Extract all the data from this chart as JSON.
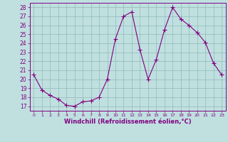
{
  "x": [
    0,
    1,
    2,
    3,
    4,
    5,
    6,
    7,
    8,
    9,
    10,
    11,
    12,
    13,
    14,
    15,
    16,
    17,
    18,
    19,
    20,
    21,
    22,
    23
  ],
  "y": [
    20.5,
    18.8,
    18.2,
    17.8,
    17.1,
    17.0,
    17.5,
    17.6,
    18.0,
    20.0,
    24.5,
    27.0,
    27.5,
    23.3,
    20.0,
    22.2,
    25.5,
    28.0,
    26.7,
    26.0,
    25.2,
    24.1,
    21.8,
    20.5
  ],
  "line_color": "#800080",
  "marker": "D",
  "marker_size": 2.0,
  "bg_color": "#c0e0e0",
  "grid_color": "#90b8b8",
  "xlabel": "Windchill (Refroidissement éolien,°C)",
  "xlabel_color": "#800080",
  "tick_color": "#800080",
  "ylim": [
    17,
    28
  ],
  "xlim": [
    -0.5,
    23.5
  ],
  "yticks": [
    17,
    18,
    19,
    20,
    21,
    22,
    23,
    24,
    25,
    26,
    27,
    28
  ],
  "xticks": [
    0,
    1,
    2,
    3,
    4,
    5,
    6,
    7,
    8,
    9,
    10,
    11,
    12,
    13,
    14,
    15,
    16,
    17,
    18,
    19,
    20,
    21,
    22,
    23
  ]
}
